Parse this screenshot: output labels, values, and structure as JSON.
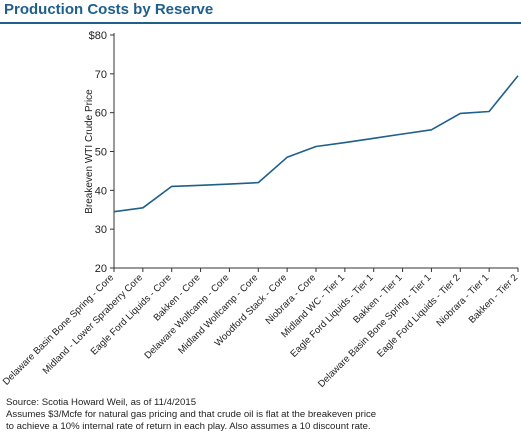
{
  "title": "Production Costs by Reserve",
  "footnotes": [
    "Source: Scotia Howard Weil, as of 11/4/2015",
    "Assumes $3/Mcfe for natural gas pricing and that crude oil is flat at the breakeven price",
    "to achieve a 10% internal rate of return in each play. Also assumes a 10 discount rate."
  ],
  "colors": {
    "title": "#1f5f8b",
    "line": "#1f5f8b",
    "axis": "#333333"
  },
  "chart_data": {
    "type": "line",
    "title": "Production Costs by Reserve",
    "xlabel": "",
    "ylabel": "Breakeven WTI Crude Price",
    "ylim": [
      20,
      80
    ],
    "yticks": [
      20,
      30,
      40,
      50,
      60,
      70,
      80
    ],
    "ytick_labels": [
      "20",
      "30",
      "40",
      "50",
      "60",
      "70",
      "$80"
    ],
    "grid": false,
    "categories": [
      "Delaware Basin Bone Spring - Core",
      "Midland - Lower Spraberry Core",
      "Eagle Ford Liquids - Core",
      "Bakken - Core",
      "Delaware Wolfcamp - Core",
      "Midland Wolfcamp - Core",
      "Woodford Stack - Core",
      "Niobrara - Core",
      "Midland WC - Tier 1",
      "Eagle Ford Liquids - Tier 1",
      "Bakken - Tier 1",
      "Delaware Basin Bone Spring - Tier 1",
      "Eagle Ford Liquids - Tier 2",
      "Niobrara - Tier 1",
      "Bakken - Tier 2"
    ],
    "values": [
      34.5,
      35.5,
      41,
      41.3,
      41.6,
      42,
      48.5,
      51.3,
      52.3,
      53.4,
      54.5,
      55.6,
      59.8,
      60.3,
      69.5
    ]
  }
}
